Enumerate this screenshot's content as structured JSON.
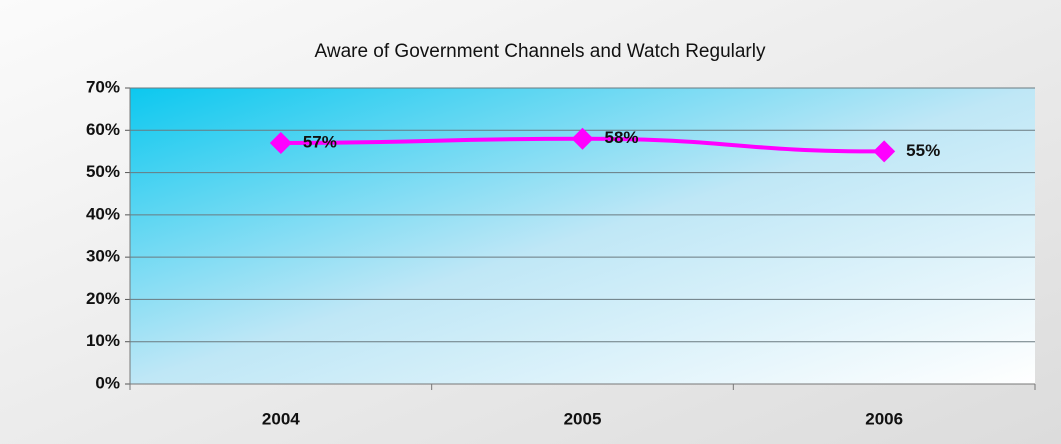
{
  "chart_data": {
    "type": "line",
    "title": "Aware of Government Channels and Watch Regularly",
    "categories": [
      "2004",
      "2005",
      "2006"
    ],
    "series": [
      {
        "name": "Aware of Government Channels and Watch Regularly",
        "color": "#ff00ff",
        "values": [
          57,
          58,
          55
        ],
        "value_labels": [
          "57%",
          "58%",
          "55%"
        ]
      }
    ],
    "ylim": [
      0,
      70
    ],
    "yticks": [
      {
        "value": 0,
        "label": "0%"
      },
      {
        "value": 10,
        "label": "10%"
      },
      {
        "value": 20,
        "label": "20%"
      },
      {
        "value": 30,
        "label": "30%"
      },
      {
        "value": 40,
        "label": "40%"
      },
      {
        "value": 50,
        "label": "50%"
      },
      {
        "value": 60,
        "label": "60%"
      },
      {
        "value": 70,
        "label": "70%"
      }
    ],
    "grid": true
  }
}
